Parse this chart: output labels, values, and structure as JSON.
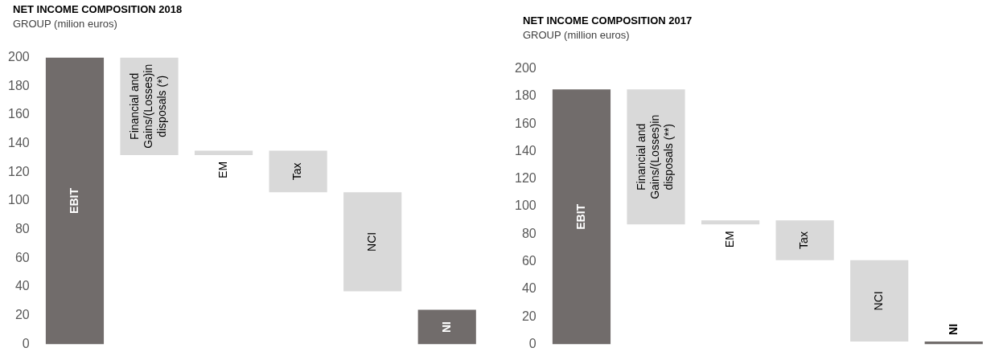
{
  "chart_data": [
    {
      "type": "bar",
      "title": "NET INCOME COMPOSITION 2018",
      "subtitle": "GROUP (milion euros)",
      "categories": [
        "EBIT",
        "Financial and Gains/(Losses)in disposals (*)",
        "EM",
        "Tax",
        "NCI",
        "NI"
      ],
      "base": [
        0,
        200,
        132,
        135,
        106,
        0
      ],
      "values": [
        200,
        -68,
        3,
        -29,
        -69,
        24
      ],
      "colors": [
        "#716c6b",
        "#d9d9d9",
        "#d9d9d9",
        "#d9d9d9",
        "#d9d9d9",
        "#716c6b"
      ],
      "ylim": [
        0,
        200
      ],
      "yticks": [
        0,
        20,
        40,
        60,
        80,
        100,
        120,
        140,
        160,
        180,
        200
      ],
      "grid": false,
      "tick_labels": "y"
    },
    {
      "type": "bar",
      "title": "NET INCOME COMPOSITION 2017",
      "subtitle": "GROUP (million euros)",
      "categories": [
        "EBIT",
        "Financial and Gains/(Losses)in disposals (**)",
        "EM",
        "Tax",
        "NCI",
        "NI"
      ],
      "base": [
        0,
        185,
        87,
        90,
        61,
        0
      ],
      "values": [
        185,
        -98,
        3,
        -29,
        -59,
        2
      ],
      "colors": [
        "#716c6b",
        "#d9d9d9",
        "#d9d9d9",
        "#d9d9d9",
        "#d9d9d9",
        "#716c6b"
      ],
      "ylim": [
        0,
        200
      ],
      "yticks": [
        0,
        20,
        40,
        60,
        80,
        100,
        120,
        140,
        160,
        180,
        200
      ],
      "grid": false,
      "tick_labels": "y"
    }
  ]
}
